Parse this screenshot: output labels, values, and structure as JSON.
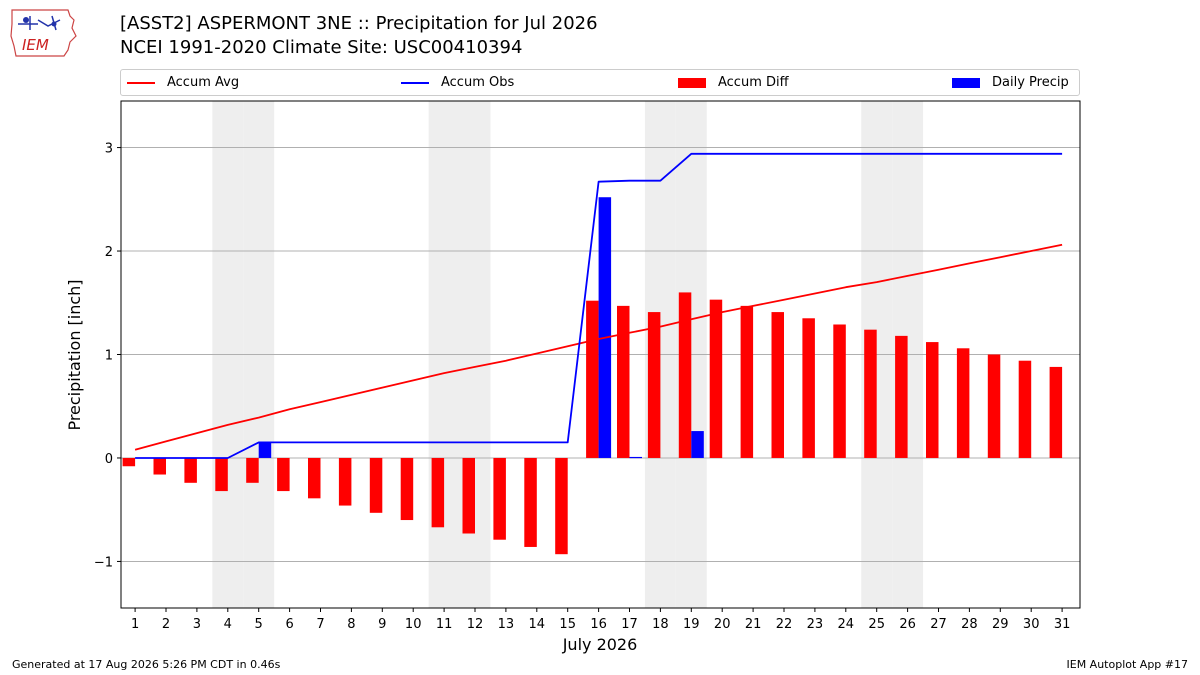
{
  "logo": {
    "text": "IEM"
  },
  "header": {
    "title_line1": "[ASST2] ASPERMONT 3NE :: Precipitation for Jul 2026",
    "title_line2": "NCEI 1991-2020 Climate Site: USC00410394"
  },
  "footer": {
    "left": "Generated at 17 Aug 2026 5:26 PM CDT in 0.46s",
    "right": "IEM Autoplot App #17"
  },
  "colors": {
    "accum_avg": "#ff0000",
    "accum_obs": "#0000ff",
    "accum_diff": "#ff0000",
    "daily_precip": "#0000ff",
    "weekend_shade": "#eeeeee",
    "grid": "#b0b0b0"
  },
  "chart_data": {
    "type": "bar",
    "xlabel": "July 2026",
    "ylabel": "Precipitation [inch]",
    "ylim": [
      -1.45,
      3.45
    ],
    "yticks": [
      -1,
      0,
      1,
      2,
      3
    ],
    "ytick_labels": [
      "−1",
      "0",
      "1",
      "2",
      "3"
    ],
    "grid": "horizontal",
    "legend_placement": "top",
    "days": [
      1,
      2,
      3,
      4,
      5,
      6,
      7,
      8,
      9,
      10,
      11,
      12,
      13,
      14,
      15,
      16,
      17,
      18,
      19,
      20,
      21,
      22,
      23,
      24,
      25,
      26,
      27,
      28,
      29,
      30,
      31
    ],
    "shaded_days": [
      4,
      5,
      11,
      12,
      18,
      19,
      25,
      26
    ],
    "series": [
      {
        "name": "Accum Avg",
        "kind": "line",
        "values": [
          0.08,
          0.16,
          0.24,
          0.32,
          0.39,
          0.47,
          0.54,
          0.61,
          0.68,
          0.75,
          0.82,
          0.88,
          0.94,
          1.01,
          1.08,
          1.15,
          1.21,
          1.27,
          1.34,
          1.41,
          1.47,
          1.53,
          1.59,
          1.65,
          1.7,
          1.76,
          1.82,
          1.88,
          1.94,
          2.0,
          2.06
        ]
      },
      {
        "name": "Accum Obs",
        "kind": "line",
        "values": [
          0,
          0,
          0,
          0,
          0.15,
          0.15,
          0.15,
          0.15,
          0.15,
          0.15,
          0.15,
          0.15,
          0.15,
          0.15,
          0.15,
          2.67,
          2.68,
          2.68,
          2.94,
          2.94,
          2.94,
          2.94,
          2.94,
          2.94,
          2.94,
          2.94,
          2.94,
          2.94,
          2.94,
          2.94,
          2.94
        ]
      },
      {
        "name": "Accum Diff",
        "kind": "bar",
        "values": [
          -0.08,
          -0.16,
          -0.24,
          -0.32,
          -0.24,
          -0.32,
          -0.39,
          -0.46,
          -0.53,
          -0.6,
          -0.67,
          -0.73,
          -0.79,
          -0.86,
          -0.93,
          1.52,
          1.47,
          1.41,
          1.6,
          1.53,
          1.47,
          1.41,
          1.35,
          1.29,
          1.24,
          1.18,
          1.12,
          1.06,
          1.0,
          0.94,
          0.88
        ]
      },
      {
        "name": "Daily Precip",
        "kind": "bar",
        "values": [
          0,
          0,
          0,
          0,
          0.15,
          0,
          0,
          0,
          0,
          0,
          0,
          0,
          0,
          0,
          0,
          2.52,
          0.01,
          0,
          0.26,
          0,
          0,
          0,
          0,
          0,
          0,
          0,
          0,
          0,
          0,
          0,
          0
        ]
      }
    ]
  }
}
